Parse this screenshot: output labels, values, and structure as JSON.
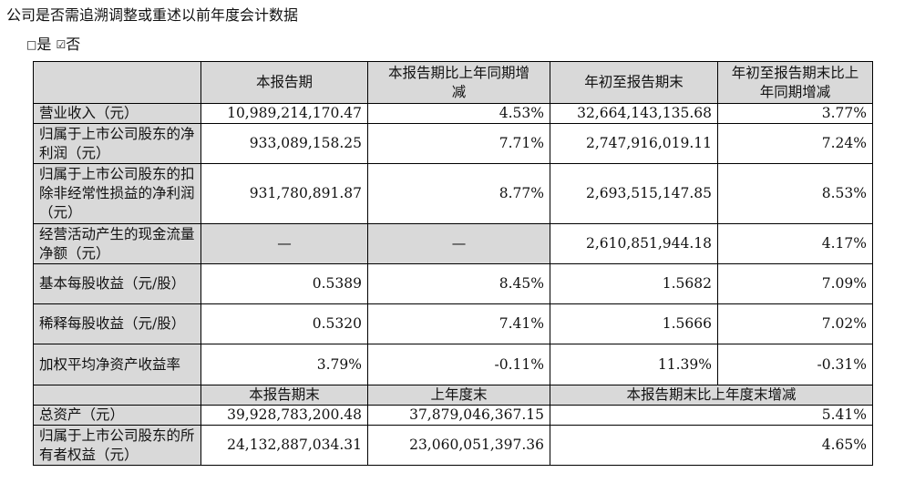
{
  "heading": "公司是否需追溯调整或重述以前年度会计数据",
  "choice": {
    "yes_box": "□",
    "yes_label": "是",
    "no_box": "☑",
    "no_label": "否"
  },
  "table": {
    "headers": [
      "",
      "本报告期",
      "本报告期比上年同期增减",
      "年初至报告期末",
      "年初至报告期末比上年同期增减"
    ],
    "rows": [
      {
        "label": "营业收入（元）",
        "cur": "10,989,214,170.47",
        "cur_chg": "4.53%",
        "ytd": "32,664,143,135.68",
        "ytd_chg": "3.77%"
      },
      {
        "label": "归属于上市公司股东的净利润（元）",
        "cur": "933,089,158.25",
        "cur_chg": "7.71%",
        "ytd": "2,747,916,019.11",
        "ytd_chg": "7.24%"
      },
      {
        "label": "归属于上市公司股东的扣除非经常性损益的净利润（元）",
        "cur": "931,780,891.87",
        "cur_chg": "8.77%",
        "ytd": "2,693,515,147.85",
        "ytd_chg": "8.53%"
      },
      {
        "label": "经营活动产生的现金流量净额（元）",
        "cur": "—",
        "cur_chg": "—",
        "ytd": "2,610,851,944.18",
        "ytd_chg": "4.17%"
      },
      {
        "label": "基本每股收益（元/股）",
        "cur": "0.5389",
        "cur_chg": "8.45%",
        "ytd": "1.5682",
        "ytd_chg": "7.09%"
      },
      {
        "label": "稀释每股收益（元/股）",
        "cur": "0.5320",
        "cur_chg": "7.41%",
        "ytd": "1.5666",
        "ytd_chg": "7.02%"
      },
      {
        "label": "加权平均净资产收益率",
        "cur": "3.79%",
        "cur_chg": "-0.11%",
        "ytd": "11.39%",
        "ytd_chg": "-0.31%"
      }
    ],
    "headers2": [
      "",
      "本报告期末",
      "上年度末",
      "本报告期末比上年度末增减"
    ],
    "rows2": [
      {
        "label": "总资产（元）",
        "end": "39,928,783,200.48",
        "prev": "37,879,046,367.15",
        "chg": "5.41%"
      },
      {
        "label": "归属于上市公司股东的所有者权益（元）",
        "end": "24,132,887,034.31",
        "prev": "23,060,051,397.36",
        "chg": "4.65%"
      }
    ]
  }
}
